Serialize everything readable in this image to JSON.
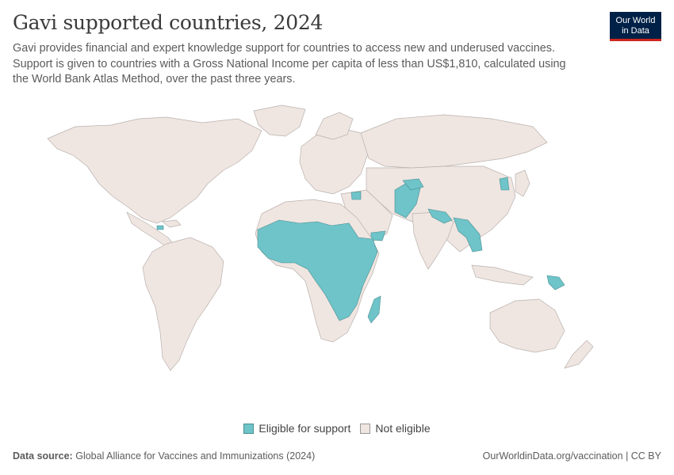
{
  "header": {
    "title": "Gavi supported countries, 2024",
    "subtitle": "Gavi provides financial and expert knowledge support for countries to access new and underused vaccines. Support is given to countries with a Gross National Income per capita of less than US$1,810, calculated using the World Bank Atlas Method, over the past three years."
  },
  "logo": {
    "line1": "Our World",
    "line2": "in Data"
  },
  "legend": {
    "eligible_label": "Eligible for support",
    "not_eligible_label": "Not eligible",
    "eligible_color": "#6ec4c8",
    "not_eligible_color": "#efe5e1"
  },
  "footer": {
    "source_prefix": "Data source:",
    "source_text": "Global Alliance for Vaccines and Immunizations (2024)",
    "link": "OurWorldinData.org/vaccination | CC BY"
  }
}
